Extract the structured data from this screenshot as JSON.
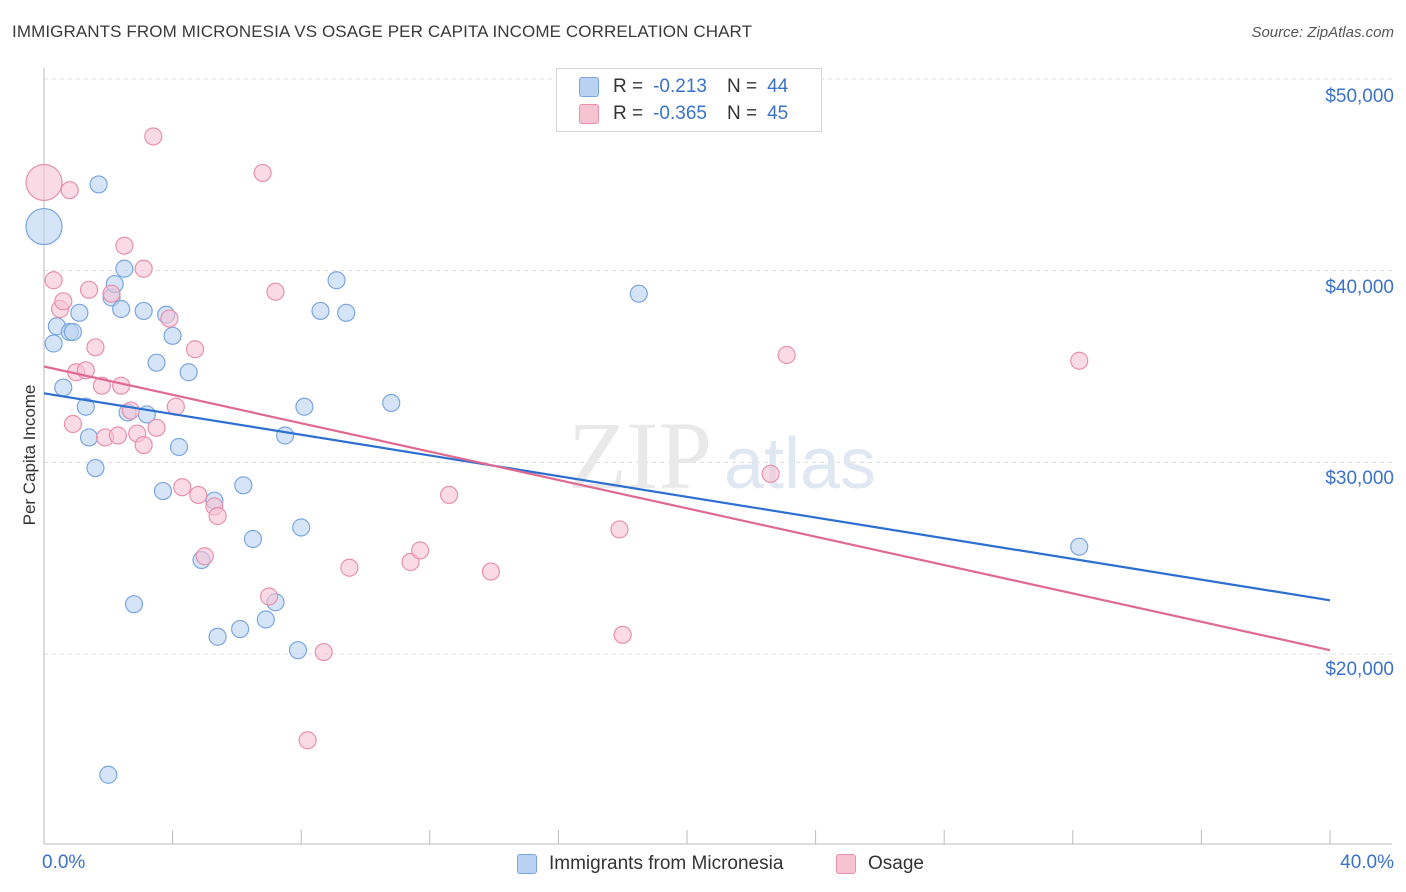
{
  "header": {
    "title": "IMMIGRANTS FROM MICRONESIA VS OSAGE PER CAPITA INCOME CORRELATION CHART",
    "source": "Source: ZipAtlas.com"
  },
  "legend": {
    "rows": [
      {
        "r_label": "R =",
        "r_value": "-0.213",
        "n_label": "N =",
        "n_value": "44"
      },
      {
        "r_label": "R =",
        "r_value": "-0.365",
        "n_label": "N =",
        "n_value": "45"
      }
    ]
  },
  "colors": {
    "blue_fill": "#b9d2f2",
    "blue_stroke": "#7aa6e0",
    "blue_line": "#2c6fd1",
    "pink_fill": "#f6c3d3",
    "pink_stroke": "#e890ac",
    "pink_line": "#e0698f",
    "tick_text": "#3a72c9",
    "grid": "#dcdcdc"
  },
  "chart_data": {
    "type": "scatter",
    "title": "IMMIGRANTS FROM MICRONESIA VS OSAGE PER CAPITA INCOME CORRELATION CHART",
    "xlabel": "",
    "ylabel": "Per Capita Income",
    "xlim": [
      0,
      40
    ],
    "ylim": [
      10000,
      52000
    ],
    "x_tick_labels": [
      "0.0%",
      "40.0%"
    ],
    "y_ticks": [
      20000,
      30000,
      40000,
      50000
    ],
    "y_tick_labels": [
      "$20,000",
      "$30,000",
      "$40,000",
      "$50,000"
    ],
    "grid": true,
    "legend_position": "top-center",
    "watermark": "ZIPatlas",
    "series": [
      {
        "name": "Immigrants from Micronesia",
        "color": "#7aa6e0",
        "r": -0.213,
        "n": 44,
        "trend": {
          "x": [
            0,
            40
          ],
          "y": [
            33600,
            22800
          ]
        },
        "points": [
          [
            0.0,
            42300
          ],
          [
            0.3,
            36200
          ],
          [
            0.4,
            37100
          ],
          [
            0.6,
            33900
          ],
          [
            0.8,
            36800
          ],
          [
            0.9,
            36800
          ],
          [
            1.1,
            37800
          ],
          [
            1.3,
            32900
          ],
          [
            1.4,
            31300
          ],
          [
            1.6,
            29700
          ],
          [
            1.7,
            44500
          ],
          [
            2.0,
            13700
          ],
          [
            2.1,
            38600
          ],
          [
            2.2,
            39300
          ],
          [
            2.4,
            38000
          ],
          [
            2.5,
            40100
          ],
          [
            2.6,
            32600
          ],
          [
            2.8,
            22600
          ],
          [
            3.1,
            37900
          ],
          [
            3.2,
            32500
          ],
          [
            3.5,
            35200
          ],
          [
            3.7,
            28500
          ],
          [
            3.8,
            37700
          ],
          [
            4.0,
            36600
          ],
          [
            4.2,
            30800
          ],
          [
            4.5,
            34700
          ],
          [
            4.9,
            24900
          ],
          [
            5.3,
            28000
          ],
          [
            5.4,
            20900
          ],
          [
            6.1,
            21300
          ],
          [
            6.2,
            28800
          ],
          [
            6.5,
            26000
          ],
          [
            6.9,
            21800
          ],
          [
            7.2,
            22700
          ],
          [
            7.5,
            31400
          ],
          [
            7.9,
            20200
          ],
          [
            8.0,
            26600
          ],
          [
            8.1,
            32900
          ],
          [
            8.6,
            37900
          ],
          [
            9.1,
            39500
          ],
          [
            9.4,
            37800
          ],
          [
            10.8,
            33100
          ],
          [
            18.5,
            38800
          ],
          [
            32.2,
            25600
          ]
        ]
      },
      {
        "name": "Osage",
        "color": "#e890ac",
        "r": -0.365,
        "n": 45,
        "trend": {
          "x": [
            0,
            40
          ],
          "y": [
            35000,
            20200
          ]
        },
        "points": [
          [
            0.0,
            44600
          ],
          [
            0.3,
            39500
          ],
          [
            0.5,
            38000
          ],
          [
            0.6,
            38400
          ],
          [
            0.8,
            44200
          ],
          [
            0.9,
            32000
          ],
          [
            1.0,
            34700
          ],
          [
            1.3,
            34800
          ],
          [
            1.4,
            39000
          ],
          [
            1.6,
            36000
          ],
          [
            1.8,
            34000
          ],
          [
            1.9,
            31300
          ],
          [
            2.1,
            38800
          ],
          [
            2.3,
            31400
          ],
          [
            2.4,
            34000
          ],
          [
            2.5,
            41300
          ],
          [
            2.7,
            32700
          ],
          [
            2.9,
            31500
          ],
          [
            3.1,
            30900
          ],
          [
            3.1,
            40100
          ],
          [
            3.4,
            47000
          ],
          [
            3.5,
            31800
          ],
          [
            3.9,
            37500
          ],
          [
            4.1,
            32900
          ],
          [
            4.3,
            28700
          ],
          [
            4.7,
            35900
          ],
          [
            4.8,
            28300
          ],
          [
            5.0,
            25100
          ],
          [
            5.3,
            27700
          ],
          [
            5.4,
            27200
          ],
          [
            6.8,
            45100
          ],
          [
            7.0,
            23000
          ],
          [
            7.2,
            38900
          ],
          [
            8.2,
            15500
          ],
          [
            8.7,
            20100
          ],
          [
            9.5,
            24500
          ],
          [
            11.4,
            24800
          ],
          [
            11.7,
            25400
          ],
          [
            12.6,
            28300
          ],
          [
            13.9,
            24300
          ],
          [
            17.9,
            26500
          ],
          [
            18.0,
            21000
          ],
          [
            22.6,
            29400
          ],
          [
            23.1,
            35600
          ],
          [
            32.2,
            35300
          ]
        ]
      }
    ]
  },
  "axis_labels": {
    "y": "Per Capita Income",
    "x_left": "0.0%",
    "x_right": "40.0%",
    "y_ticks": [
      "$50,000",
      "$40,000",
      "$30,000",
      "$20,000"
    ]
  },
  "bottom_legend": {
    "series1": "Immigrants from Micronesia",
    "series2": "Osage"
  }
}
